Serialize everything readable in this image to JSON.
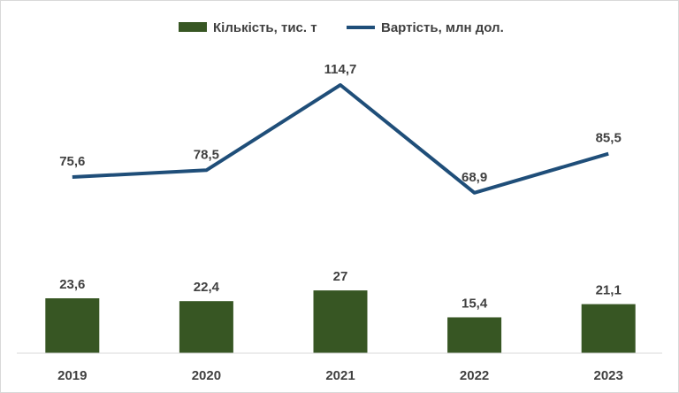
{
  "chart_data": {
    "type": "bar+line",
    "categories": [
      "2019",
      "2020",
      "2021",
      "2022",
      "2023"
    ],
    "series": [
      {
        "name": "Кількість, тис. т",
        "type": "bar",
        "color": "#375623",
        "values": [
          23.6,
          22.4,
          27,
          15.4,
          21.1
        ],
        "labels": [
          "23,6",
          "22,4",
          "27",
          "15,4",
          "21,1"
        ]
      },
      {
        "name": "Вартість, млн дол.",
        "type": "line",
        "color": "#1f4e79",
        "values": [
          75.6,
          78.5,
          114.7,
          68.9,
          85.5
        ],
        "labels": [
          "75,6",
          "78,5",
          "114,7",
          "68,9",
          "85,5"
        ]
      }
    ],
    "legend_position": "top",
    "grid": false
  }
}
